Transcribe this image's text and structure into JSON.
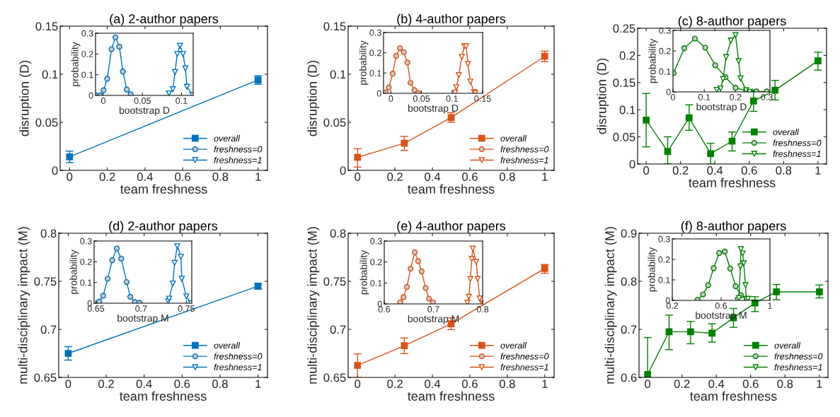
{
  "chart_data": [
    {
      "type": "line",
      "title": "(a) 2-author papers",
      "xlabel": "team freshness",
      "ylabel": "disruption (D)",
      "xlim": [
        -0.05,
        1.05
      ],
      "ylim": [
        0,
        0.15
      ],
      "xticks": [
        0,
        0.2,
        0.4,
        0.6,
        0.8,
        1
      ],
      "yticks": [
        0,
        0.05,
        0.1,
        0.15
      ],
      "legend": "bottom right",
      "series": [
        {
          "name": "overall",
          "color": "#0072bd",
          "marker": "square",
          "x": [
            0,
            1
          ],
          "values": [
            0.014,
            0.094
          ],
          "errors": [
            [
              0.008,
              0.02
            ],
            [
              0.0895,
              0.0985
            ]
          ]
        }
      ]
    },
    {
      "type": "line",
      "xlabel": "bootstrap D",
      "ylabel": "probability",
      "xlim": [
        -0.01,
        0.115
      ],
      "ylim": [
        0,
        0.3
      ],
      "xticks": [
        0,
        0.05,
        0.1
      ],
      "legend": "bottom right",
      "yticks": [
        0,
        0.1,
        0.2,
        0.3
      ],
      "series": [
        {
          "name": "freshness=0",
          "color": "#0072bd",
          "marker": "circle",
          "x": [
            -0.0095,
            -0.004,
            0.0003,
            0.005,
            0.0104,
            0.0155,
            0.0205,
            0.025,
            0.03,
            0.035
          ],
          "values": [
            0,
            0,
            0.025,
            0.08,
            0.223,
            0.28,
            0.235,
            0.115,
            0.028,
            0.005
          ]
        },
        {
          "name": "freshness=1",
          "color": "#0072bd",
          "marker": "triangle",
          "x": [
            0.084,
            0.089,
            0.0917,
            0.0946,
            0.098,
            0.102,
            0.105,
            0.107,
            0.114
          ],
          "values": [
            0.01,
            0.03,
            0.113,
            0.2,
            0.24,
            0.2,
            0.13,
            0.042,
            0.002
          ]
        }
      ]
    },
    {
      "type": "line",
      "title": "(b) 4-author papers",
      "xlabel": "team freshness",
      "ylabel": "disruption (D)",
      "xlim": [
        -0.05,
        1.05
      ],
      "ylim": [
        0,
        0.15
      ],
      "xticks": [
        0,
        0.2,
        0.4,
        0.6,
        0.8,
        1
      ],
      "yticks": [
        0,
        0.05,
        0.1,
        0.15
      ],
      "legend": "bottom right",
      "series": [
        {
          "name": "overall",
          "color": "#d95319",
          "marker": "square",
          "x": [
            0,
            0.25,
            0.5,
            1
          ],
          "values": [
            0.0135,
            0.0282,
            0.0549,
            0.1186
          ],
          "errors": [
            [
              0.0034,
              0.0225
            ],
            [
              0.0208,
              0.0353
            ],
            [
              0.05,
              0.06
            ],
            [
              0.113,
              0.124
            ]
          ]
        }
      ]
    },
    {
      "type": "line",
      "xlabel": "bootstrap D",
      "ylabel": "probability",
      "xlim": [
        -0.012,
        0.15
      ],
      "ylim": [
        0,
        0.3
      ],
      "legend": "bottom right",
      "xticks": [
        0,
        0.05,
        0.1,
        0.15
      ],
      "yticks": [
        0,
        0.1,
        0.2,
        0.3
      ],
      "series": [
        {
          "name": "freshness=0",
          "color": "#d95319",
          "marker": "circle",
          "x": [
            -0.0086,
            -0.0035,
            0.003,
            0.0086,
            0.0148,
            0.021,
            0.027,
            0.032,
            0.0385,
            0.0447
          ],
          "values": [
            0.003,
            0.029,
            0.097,
            0.185,
            0.223,
            0.203,
            0.152,
            0.052,
            0.016,
            0.002
          ]
        },
        {
          "name": "freshness=1",
          "color": "#d95319",
          "marker": "triangle",
          "x": [
            0.105,
            0.107,
            0.111,
            0.116,
            0.12,
            0.123,
            0.126,
            0.13,
            0.136,
            0.138
          ],
          "values": [
            0.003,
            0.03,
            0.09,
            0.18,
            0.232,
            0.232,
            0.145,
            0.058,
            0.006,
            0
          ]
        }
      ]
    },
    {
      "type": "line",
      "title": "(c) 8-author papers",
      "xlabel": "team freshness",
      "ylabel": "disruption (D)",
      "xlim": [
        -0.05,
        1.05
      ],
      "ylim": [
        0,
        0.25
      ],
      "xticks": [
        0,
        0.2,
        0.4,
        0.6,
        0.8,
        1
      ],
      "yticks": [
        0,
        0.05,
        0.1,
        0.15,
        0.2,
        0.25
      ],
      "legend": "bottom right",
      "series": [
        {
          "name": "overall",
          "color": "#008000",
          "marker": "square",
          "x": [
            0,
            0.125,
            0.25,
            0.375,
            0.5,
            0.625,
            0.75,
            1
          ],
          "values": [
            0.081,
            0.023,
            0.085,
            0.019,
            0.042,
            0.116,
            0.136,
            0.19
          ],
          "errors": [
            [
              0.0315,
              0.13
            ],
            [
              0,
              0.05
            ],
            [
              0.062,
              0.109
            ],
            [
              0,
              0.038
            ],
            [
              0.024,
              0.059
            ],
            [
              0.097,
              0.136
            ],
            [
              0.118,
              0.154
            ],
            [
              0.173,
              0.206
            ]
          ]
        }
      ]
    },
    {
      "type": "line",
      "xlabel": "bootstrap D",
      "ylabel": "probability",
      "xlim": [
        0,
        0.31
      ],
      "ylim": [
        0,
        0.3
      ],
      "legend": "bottom right",
      "xticks": [
        0,
        0.1,
        0.2,
        0.3
      ],
      "yticks": [
        0,
        0.1,
        0.2,
        0.3
      ],
      "series": [
        {
          "name": "freshness=0",
          "color": "#008000",
          "marker": "circle",
          "x": [
            0.002,
            0.036,
            0.07,
            0.103,
            0.135,
            0.168,
            0.2,
            0.234,
            0.267,
            0.3
          ],
          "values": [
            0.092,
            0.213,
            0.26,
            0.216,
            0.13,
            0.072,
            0.02,
            0.006,
            0.002,
            0.002
          ]
        },
        {
          "name": "freshness=1",
          "color": "#008000",
          "marker": "triangle",
          "x": [
            0.14,
            0.152,
            0.16,
            0.17,
            0.185,
            0.2,
            0.21,
            0.216,
            0.234,
            0.245
          ],
          "values": [
            0.01,
            0.017,
            0.063,
            0.17,
            0.25,
            0.277,
            0.15,
            0.066,
            0.008,
            0
          ]
        }
      ]
    },
    {
      "type": "line",
      "title": "(d) 2-author papers",
      "xlabel": "team freshness",
      "ylabel": "multi-disciplinary impact (M)",
      "xlim": [
        -0.05,
        1.05
      ],
      "ylim": [
        0.65,
        0.8
      ],
      "xticks": [
        0,
        0.2,
        0.4,
        0.6,
        0.8,
        1
      ],
      "yticks": [
        0.65,
        0.7,
        0.75,
        0.8
      ],
      "legend": "bottom right",
      "series": [
        {
          "name": "overall",
          "color": "#0072bd",
          "marker": "square",
          "x": [
            0,
            1
          ],
          "values": [
            0.675,
            0.745
          ],
          "errors": [
            [
              0.668,
              0.682
            ],
            [
              0.742,
              0.748
            ]
          ]
        }
      ]
    },
    {
      "type": "line",
      "xlabel": "bootstrap M",
      "ylabel": "probability",
      "xlim": [
        0.648,
        0.756
      ],
      "ylim": [
        0,
        0.3
      ],
      "legend": "bottom right",
      "xticks": [
        0.65,
        0.7,
        0.75
      ],
      "yticks": [
        0,
        0.1,
        0.2,
        0.3
      ],
      "series": [
        {
          "name": "freshness=0",
          "color": "#0072bd",
          "marker": "circle",
          "x": [
            0.6537,
            0.658,
            0.663,
            0.668,
            0.673,
            0.678,
            0.684,
            0.688,
            0.693,
            0.698
          ],
          "values": [
            0.008,
            0.036,
            0.118,
            0.207,
            0.264,
            0.215,
            0.102,
            0.031,
            0.005,
            0.002
          ]
        },
        {
          "name": "freshness=1",
          "color": "#0072bd",
          "marker": "triangle",
          "x": [
            0.73,
            0.731,
            0.735,
            0.737,
            0.74,
            0.744,
            0.745,
            0.75,
            0.755
          ],
          "values": [
            0.01,
            0.022,
            0.095,
            0.195,
            0.275,
            0.224,
            0.118,
            0.033,
            0
          ]
        }
      ]
    },
    {
      "type": "line",
      "title": "(e) 4-author papers",
      "xlabel": "team freshness",
      "ylabel": "multi-disciplinary impact (M)",
      "xlim": [
        -0.05,
        1.05
      ],
      "ylim": [
        0.65,
        0.8
      ],
      "xticks": [
        0,
        0.2,
        0.4,
        0.6,
        0.8,
        1
      ],
      "yticks": [
        0.65,
        0.7,
        0.75,
        0.8
      ],
      "legend": "bottom right",
      "series": [
        {
          "name": "overall",
          "color": "#d95319",
          "marker": "square",
          "x": [
            0,
            0.25,
            0.5,
            1
          ],
          "values": [
            0.6625,
            0.683,
            0.7058,
            0.7633
          ],
          "errors": [
            [
              0.65,
              0.6745
            ],
            [
              0.6747,
              0.691
            ],
            [
              0.6997,
              0.712
            ],
            [
              0.7584,
              0.7675
            ]
          ]
        }
      ]
    },
    {
      "type": "line",
      "xlabel": "bootstrap M",
      "ylabel": "probability",
      "xlim": [
        0.6,
        0.8
      ],
      "ylim": [
        0,
        0.3
      ],
      "legend": "bottom right",
      "xticks": [
        0.6,
        0.7,
        0.8
      ],
      "yticks": [
        0,
        0.1,
        0.2,
        0.3
      ],
      "series": [
        {
          "name": "freshness=0",
          "color": "#d95319",
          "marker": "circle",
          "x": [
            0.6324,
            0.639,
            0.646,
            0.6536,
            0.662,
            0.669,
            0.676,
            0.684,
            0.691,
            0.699
          ],
          "values": [
            0.008,
            0.032,
            0.081,
            0.168,
            0.246,
            0.204,
            0.155,
            0.076,
            0.025,
            0.008
          ]
        },
        {
          "name": "freshness=1",
          "color": "#d95319",
          "marker": "triangle",
          "x": [
            0.769,
            0.772,
            0.775,
            0.778,
            0.78,
            0.787,
            0.79,
            0.794,
            0.8
          ],
          "values": [
            0.005,
            0.034,
            0.119,
            0.215,
            0.264,
            0.2,
            0.119,
            0.026,
            0
          ]
        }
      ]
    },
    {
      "type": "line",
      "title": "(f) 8-author papers",
      "xlabel": "team freshness",
      "ylabel": "multi-disciplinary impact (M)",
      "xlim": [
        -0.05,
        1.05
      ],
      "ylim": [
        0.6,
        0.9
      ],
      "xticks": [
        0,
        0.2,
        0.4,
        0.6,
        0.8,
        1
      ],
      "yticks": [
        0.6,
        0.7,
        0.8,
        0.9
      ],
      "legend": "bottom right",
      "series": [
        {
          "name": "overall",
          "color": "#008000",
          "marker": "square",
          "x": [
            0,
            0.125,
            0.25,
            0.375,
            0.5,
            0.625,
            0.75,
            1
          ],
          "values": [
            0.606,
            0.695,
            0.695,
            0.692,
            0.724,
            0.755,
            0.778,
            0.778
          ],
          "errors": [
            [
              0.6,
              0.683
            ],
            [
              0.6578,
              0.7297
            ],
            [
              0.67,
              0.7165
            ],
            [
              0.6734,
              0.7116
            ],
            [
              0.7043,
              0.7434
            ],
            [
              0.737,
              0.7679
            ],
            [
              0.7615,
              0.7933
            ],
            [
              0.7654,
              0.7924
            ]
          ]
        }
      ]
    },
    {
      "type": "line",
      "xlabel": "bootstrap M",
      "ylabel": "probability",
      "xlim": [
        0.2,
        1
      ],
      "ylim": [
        0,
        0.3
      ],
      "legend": "bottom right",
      "xticks": [
        0.2,
        0.6,
        1
      ],
      "yticks": [
        0,
        0.1,
        0.2,
        0.3
      ],
      "series": [
        {
          "name": "freshness=0",
          "color": "#008000",
          "marker": "circle",
          "x": [
            0.407,
            0.452,
            0.494,
            0.539,
            0.584,
            0.63,
            0.675,
            0.719,
            0.762,
            0.81
          ],
          "values": [
            0.003,
            0.029,
            0.074,
            0.157,
            0.231,
            0.238,
            0.155,
            0.069,
            0.025,
            0.006
          ]
        },
        {
          "name": "freshness=1",
          "color": "#008000",
          "marker": "triangle",
          "x": [
            0.735,
            0.746,
            0.758,
            0.762,
            0.777,
            0.785,
            0.8,
            0.806,
            0.82
          ],
          "values": [
            0,
            0.011,
            0.166,
            0.25,
            0.229,
            0.181,
            0.074,
            0.006,
            0.008
          ]
        }
      ]
    }
  ]
}
